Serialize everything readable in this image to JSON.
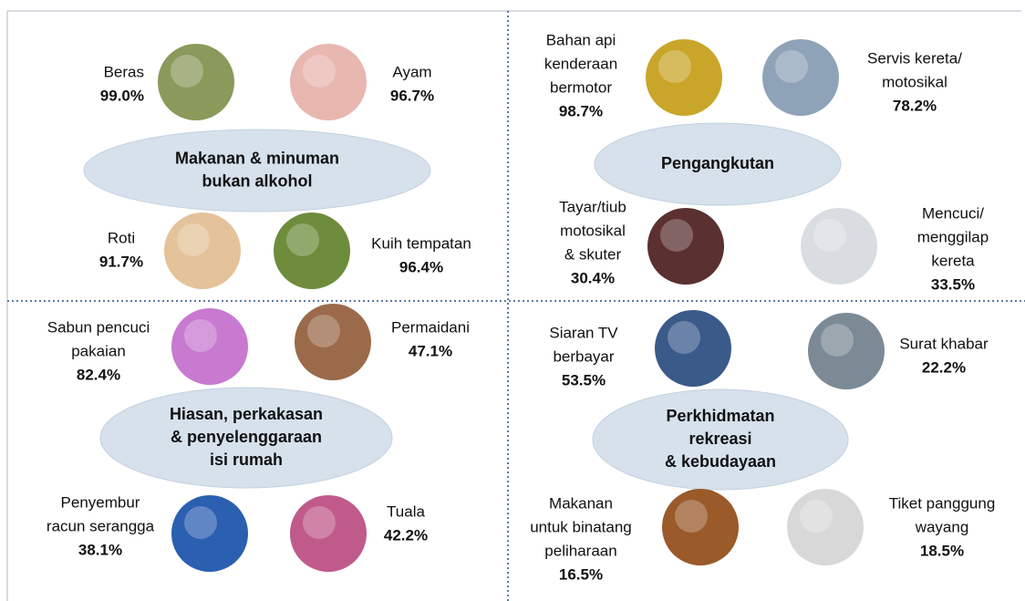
{
  "quadrants": [
    {
      "title": [
        "Makanan & minuman",
        "bukan alkohol"
      ],
      "items": [
        {
          "label": [
            "Beras"
          ],
          "value": "99.0%"
        },
        {
          "label": [
            "Ayam"
          ],
          "value": "96.7%"
        },
        {
          "label": [
            "Roti"
          ],
          "value": "91.7%"
        },
        {
          "label": [
            "Kuih tempatan"
          ],
          "value": "96.4%"
        }
      ]
    },
    {
      "title": [
        "Pengangkutan"
      ],
      "items": [
        {
          "label": [
            "Bahan api",
            "kenderaan",
            "bermotor"
          ],
          "value": "98.7%"
        },
        {
          "label": [
            "Servis kereta/",
            "motosikal"
          ],
          "value": "78.2%"
        },
        {
          "label": [
            "Tayar/tiub",
            "motosikal",
            "& skuter"
          ],
          "value": "30.4%"
        },
        {
          "label": [
            "Mencuci/",
            "menggilap",
            "kereta"
          ],
          "value": "33.5%"
        }
      ]
    },
    {
      "title": [
        "Hiasan, perkakasan",
        "& penyelenggaraan",
        "isi rumah"
      ],
      "items": [
        {
          "label": [
            "Sabun pencuci",
            "pakaian"
          ],
          "value": "82.4%"
        },
        {
          "label": [
            "Permaidani"
          ],
          "value": "47.1%"
        },
        {
          "label": [
            "Penyembur",
            "racun serangga"
          ],
          "value": "38.1%"
        },
        {
          "label": [
            "Tuala"
          ],
          "value": "42.2%"
        }
      ]
    },
    {
      "title": [
        "Perkhidmatan",
        "rekreasi",
        "& kebudayaan"
      ],
      "items": [
        {
          "label": [
            "Siaran TV",
            "berbayar"
          ],
          "value": "53.5%"
        },
        {
          "label": [
            "Surat khabar"
          ],
          "value": "22.2%"
        },
        {
          "label": [
            "Makanan",
            "untuk binatang",
            "peliharaan"
          ],
          "value": "16.5%"
        },
        {
          "label": [
            "Tiket panggung",
            "wayang"
          ],
          "value": "18.5%"
        }
      ]
    }
  ]
}
